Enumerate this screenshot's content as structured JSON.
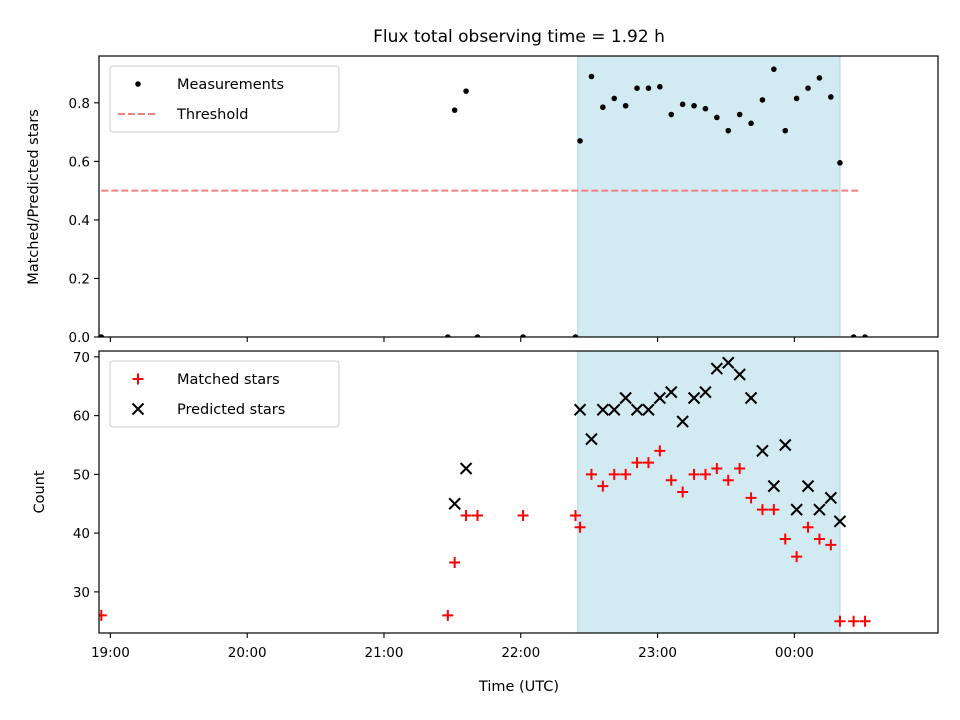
{
  "figure": {
    "title": "Flux total observing time = 1.92 h",
    "xlabel": "Time (UTC)",
    "x_ticks": [
      "19:00",
      "20:00",
      "21:00",
      "22:00",
      "23:00",
      "00:00"
    ]
  },
  "chart_data": [
    {
      "type": "scatter",
      "ylabel": "Matched/Predicted stars",
      "xlim": [
        "18:55",
        "01:03"
      ],
      "ylim": [
        0,
        0.96
      ],
      "y_ticks": [
        "0.0",
        "0.2",
        "0.4",
        "0.6",
        "0.8"
      ],
      "legend_placement": "top-left",
      "shaded_span": {
        "start": "22:25",
        "end": "00:20",
        "color": "#add8e6"
      },
      "series": [
        {
          "name": "Measurements",
          "marker": "dot",
          "color": "#000000",
          "points": [
            [
              "18:56",
              0.0
            ],
            [
              "21:28",
              0.0
            ],
            [
              "21:31",
              0.775
            ],
            [
              "21:36",
              0.84
            ],
            [
              "21:41",
              0.0
            ],
            [
              "22:01",
              0.0
            ],
            [
              "22:24",
              0.0
            ],
            [
              "22:26",
              0.67
            ],
            [
              "22:31",
              0.89
            ],
            [
              "22:36",
              0.785
            ],
            [
              "22:41",
              0.815
            ],
            [
              "22:46",
              0.79
            ],
            [
              "22:51",
              0.85
            ],
            [
              "22:56",
              0.85
            ],
            [
              "23:01",
              0.855
            ],
            [
              "23:06",
              0.76
            ],
            [
              "23:11",
              0.795
            ],
            [
              "23:16",
              0.79
            ],
            [
              "23:21",
              0.78
            ],
            [
              "23:26",
              0.75
            ],
            [
              "23:31",
              0.705
            ],
            [
              "23:36",
              0.76
            ],
            [
              "23:41",
              0.73
            ],
            [
              "23:46",
              0.81
            ],
            [
              "23:51",
              0.915
            ],
            [
              "23:56",
              0.705
            ],
            [
              "00:01",
              0.815
            ],
            [
              "00:06",
              0.85
            ],
            [
              "00:11",
              0.885
            ],
            [
              "00:16",
              0.82
            ],
            [
              "00:20",
              0.595
            ],
            [
              "00:26",
              0.0
            ],
            [
              "00:31",
              0.0
            ]
          ]
        },
        {
          "name": "Threshold",
          "marker": "dashed-line",
          "color": "#f08080",
          "points": [
            [
              "18:56",
              0.5
            ],
            [
              "00:28",
              0.5
            ]
          ]
        }
      ]
    },
    {
      "type": "scatter",
      "ylabel": "Count",
      "xlim": [
        "18:55",
        "01:03"
      ],
      "ylim": [
        23,
        71
      ],
      "y_ticks": [
        "30",
        "40",
        "50",
        "60",
        "70"
      ],
      "legend_placement": "top-left",
      "shaded_span": {
        "start": "22:25",
        "end": "00:20",
        "color": "#add8e6"
      },
      "series": [
        {
          "name": "Matched stars",
          "marker": "plus",
          "color": "#ff0000",
          "points": [
            [
              "18:56",
              26
            ],
            [
              "21:28",
              26
            ],
            [
              "21:31",
              35
            ],
            [
              "21:36",
              43
            ],
            [
              "21:41",
              43
            ],
            [
              "22:01",
              43
            ],
            [
              "22:24",
              43
            ],
            [
              "22:26",
              41
            ],
            [
              "22:31",
              50
            ],
            [
              "22:36",
              48
            ],
            [
              "22:41",
              50
            ],
            [
              "22:46",
              50
            ],
            [
              "22:51",
              52
            ],
            [
              "22:56",
              52
            ],
            [
              "23:01",
              54
            ],
            [
              "23:06",
              49
            ],
            [
              "23:11",
              47
            ],
            [
              "23:16",
              50
            ],
            [
              "23:21",
              50
            ],
            [
              "23:26",
              51
            ],
            [
              "23:31",
              49
            ],
            [
              "23:36",
              51
            ],
            [
              "23:41",
              46
            ],
            [
              "23:46",
              44
            ],
            [
              "23:51",
              44
            ],
            [
              "23:56",
              39
            ],
            [
              "00:01",
              36
            ],
            [
              "00:06",
              41
            ],
            [
              "00:11",
              39
            ],
            [
              "00:16",
              38
            ],
            [
              "00:20",
              25
            ],
            [
              "00:26",
              25
            ],
            [
              "00:31",
              25
            ]
          ]
        },
        {
          "name": "Predicted stars",
          "marker": "x",
          "color": "#000000",
          "points": [
            [
              "21:31",
              45
            ],
            [
              "21:36",
              51
            ],
            [
              "22:26",
              61
            ],
            [
              "22:31",
              56
            ],
            [
              "22:36",
              61
            ],
            [
              "22:41",
              61
            ],
            [
              "22:46",
              63
            ],
            [
              "22:51",
              61
            ],
            [
              "22:56",
              61
            ],
            [
              "23:01",
              63
            ],
            [
              "23:06",
              64
            ],
            [
              "23:11",
              59
            ],
            [
              "23:16",
              63
            ],
            [
              "23:21",
              64
            ],
            [
              "23:26",
              68
            ],
            [
              "23:31",
              69
            ],
            [
              "23:36",
              67
            ],
            [
              "23:41",
              63
            ],
            [
              "23:46",
              54
            ],
            [
              "23:51",
              48
            ],
            [
              "23:56",
              55
            ],
            [
              "00:01",
              44
            ],
            [
              "00:06",
              48
            ],
            [
              "00:11",
              44
            ],
            [
              "00:16",
              46
            ],
            [
              "00:20",
              42
            ]
          ]
        }
      ]
    }
  ]
}
